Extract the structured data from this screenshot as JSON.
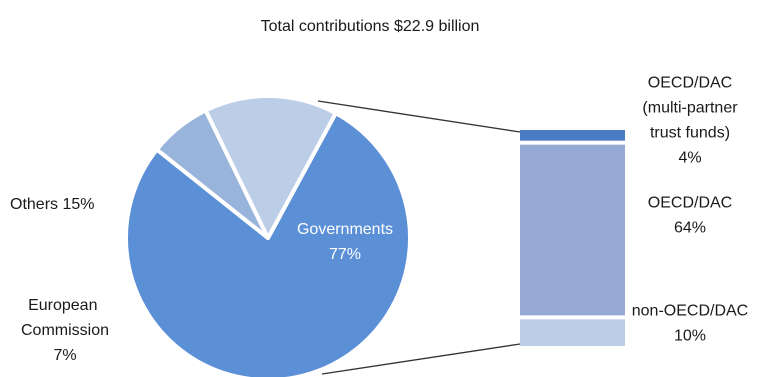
{
  "chart_data": {
    "type": "pie",
    "title": "Total contributions $22.9  billion",
    "pie": {
      "slices": [
        {
          "name": "Governments",
          "value": 77,
          "label": "Governments",
          "pct_label": "77%",
          "color": "#5b8fd6"
        },
        {
          "name": "European Commission",
          "value": 7,
          "label": "European Commission",
          "pct_label": "7%",
          "color": "#99b4db"
        },
        {
          "name": "Others",
          "value": 15,
          "label": "Others 15%",
          "color": "#bccde8"
        }
      ]
    },
    "breakdown": {
      "of": "Governments",
      "segments": [
        {
          "name": "OECD/DAC (multi-partner trust funds)",
          "value": 4,
          "label_lines": [
            "OECD/DAC",
            "(multi-partner",
            "trust funds)",
            "4%"
          ],
          "color": "#4a7cc4"
        },
        {
          "name": "OECD/DAC",
          "value": 64,
          "label_lines": [
            "OECD/DAC",
            "64%"
          ],
          "color": "#95a9d3"
        },
        {
          "name": "non-OECD/DAC",
          "value": 10,
          "label_lines": [
            "non-OECD/DAC",
            "10%"
          ],
          "color": "#bccde8"
        }
      ]
    }
  }
}
